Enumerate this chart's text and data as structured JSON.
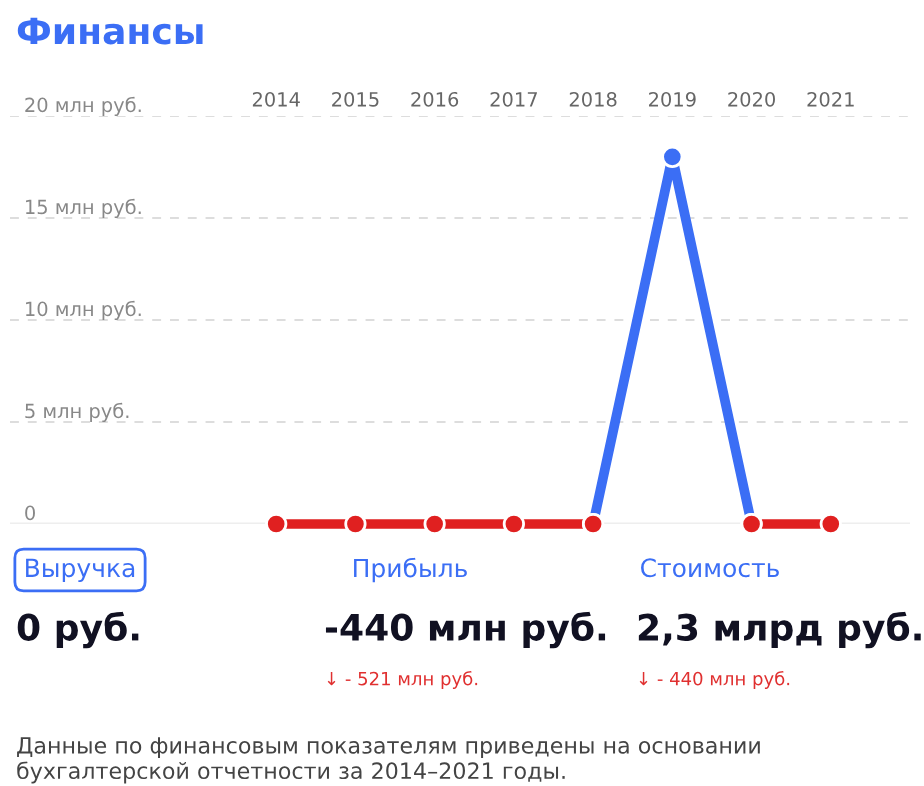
{
  "chart_data": {
    "type": "line",
    "title": "Финансы",
    "categories": [
      "2014",
      "2015",
      "2016",
      "2017",
      "2018",
      "2019",
      "2020",
      "2021"
    ],
    "series": [
      {
        "color": "#3b6ef5",
        "colors": [
          null,
          null,
          null,
          null,
          "#e02020",
          "#3b6ef5",
          "#e02020",
          null
        ],
        "values": [
          null,
          null,
          null,
          null,
          0,
          18,
          0,
          null
        ]
      },
      {
        "color": "#e02020",
        "values": [
          0,
          0,
          0,
          0,
          0,
          null,
          0,
          0
        ]
      }
    ],
    "ylim": [
      0,
      20
    ],
    "yticks": [
      {
        "value": 0,
        "label": "0"
      },
      {
        "value": 5,
        "label": "5 млн руб."
      },
      {
        "value": 10,
        "label": "10 млн руб."
      },
      {
        "value": 15,
        "label": "15 млн руб."
      },
      {
        "value": 20,
        "label": "20 млн руб."
      }
    ],
    "grid": "y",
    "marker": "circle",
    "line_style": "solid",
    "annotations": [
      "Выручка",
      "0 руб.",
      "Прибыль",
      "-440 млн руб.",
      "↓ - 521 млн руб.",
      "Стоимость",
      "2,3 млрд руб.",
      "↓ - 440 млн руб.",
      "Данные по финансовым показателям приведены на основании бухгалтерской отчетности за 2014–2021 годы."
    ]
  }
}
